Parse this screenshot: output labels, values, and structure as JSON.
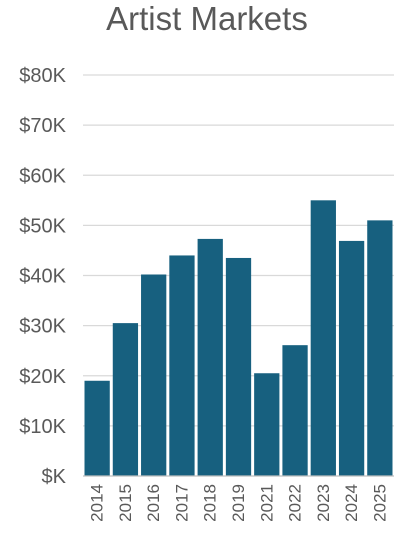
{
  "chart_data": {
    "type": "bar",
    "title": "Artist Markets",
    "xlabel": "",
    "ylabel": "",
    "categories": [
      "2014",
      "2015",
      "2016",
      "2017",
      "2018",
      "2019",
      "2021",
      "2022",
      "2023",
      "2024",
      "2025"
    ],
    "values": [
      19000,
      30500,
      40200,
      44000,
      47300,
      43500,
      20500,
      26100,
      55000,
      46900,
      51000
    ],
    "ylim": [
      0,
      80000
    ],
    "yticks": [
      0,
      10000,
      20000,
      30000,
      40000,
      50000,
      60000,
      70000,
      80000
    ],
    "ytick_labels": [
      "$K",
      "$10K",
      "$20K",
      "$30K",
      "$40K",
      "$50K",
      "$60K",
      "$70K",
      "$80K"
    ],
    "grid": true,
    "legend": "none",
    "bar_color": "#17607f"
  }
}
